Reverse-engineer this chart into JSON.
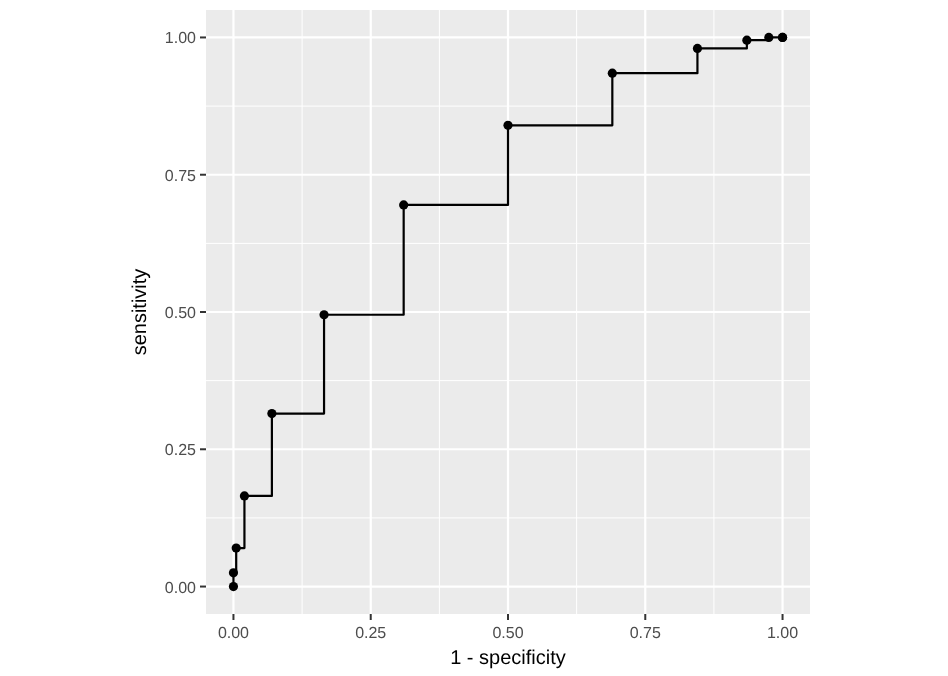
{
  "chart_data": {
    "type": "step",
    "xlabel": "1 - specificity",
    "ylabel": "sensitivity",
    "series": [
      {
        "color": "#000000",
        "x": [
          0,
          0,
          0.005,
          0.02,
          0.07,
          0.165,
          0.31,
          0.5,
          0.69,
          0.845,
          0.935,
          0.975,
          1,
          1
        ],
        "values": [
          0,
          0.025,
          0.07,
          0.165,
          0.315,
          0.495,
          0.695,
          0.84,
          0.935,
          0.98,
          0.995,
          1,
          1,
          1
        ]
      }
    ],
    "xlim": [
      -0.05,
      1.05
    ],
    "ylim": [
      -0.05,
      1.05
    ],
    "xticks": [
      {
        "value": 0,
        "label": "0.00"
      },
      {
        "value": 0.25,
        "label": "0.25"
      },
      {
        "value": 0.5,
        "label": "0.50"
      },
      {
        "value": 0.75,
        "label": "0.75"
      },
      {
        "value": 1,
        "label": "1.00"
      }
    ],
    "yticks": [
      {
        "value": 0,
        "label": "0.00"
      },
      {
        "value": 0.25,
        "label": "0.25"
      },
      {
        "value": 0.5,
        "label": "0.50"
      },
      {
        "value": 0.75,
        "label": "0.75"
      },
      {
        "value": 1,
        "label": "1.00"
      }
    ],
    "grid": true,
    "marker": "circle"
  }
}
